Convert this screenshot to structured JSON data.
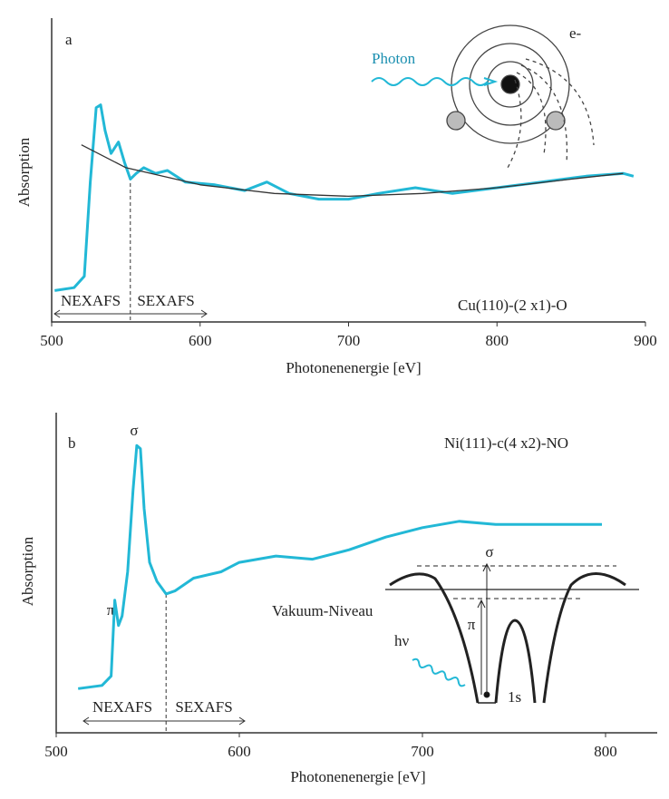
{
  "chart_data": [
    {
      "type": "line",
      "panel_label": "a",
      "xlabel": "Photonenenergie [eV]",
      "ylabel": "Absorption",
      "annotation": "Cu(110)-(2 x1)-O",
      "region_labels": [
        "NEXAFS",
        "SEXAFS"
      ],
      "inset_labels": [
        "Photon",
        "e-"
      ],
      "xlim": [
        500,
        900
      ],
      "xticks": [
        500,
        600,
        700,
        800,
        900
      ],
      "ylim": [
        0,
        100
      ],
      "divider_x": 553,
      "series": [
        {
          "color": "#22b8d6",
          "x": [
            502,
            515,
            522,
            526,
            530,
            533,
            536,
            540,
            545,
            549,
            553,
            557,
            562,
            570,
            578,
            590,
            610,
            630,
            645,
            660,
            680,
            700,
            720,
            745,
            770,
            800,
            830,
            860,
            885,
            892
          ],
          "values": [
            11,
            12,
            16,
            49,
            75,
            76,
            67,
            59,
            63,
            56,
            50,
            52,
            54,
            52,
            53,
            49,
            48,
            46,
            49,
            45,
            43,
            43,
            45,
            47,
            45,
            47,
            49,
            51,
            52,
            51
          ]
        },
        {
          "color": "#333333",
          "x": [
            520,
            550,
            600,
            650,
            700,
            750,
            800,
            850,
            885
          ],
          "values": [
            62,
            54,
            48,
            45,
            44,
            45,
            47,
            50,
            52
          ]
        }
      ]
    },
    {
      "type": "line",
      "panel_label": "b",
      "xlabel": "Photonenenergie [eV]",
      "ylabel": "Absorption",
      "annotation": "Ni(111)-c(4 x2)-NO",
      "region_labels": [
        "NEXAFS",
        "SEXAFS"
      ],
      "peak_labels": [
        "σ",
        "π"
      ],
      "inset_labels": [
        "Vakuum-Niveau",
        "hν",
        "1s",
        "σ",
        "π"
      ],
      "xlim": [
        500,
        828
      ],
      "xticks": [
        500,
        600,
        700,
        800
      ],
      "ylim": [
        0,
        100
      ],
      "divider_x": 560,
      "series": [
        {
          "color": "#22b8d6",
          "x": [
            512,
            525,
            530,
            532,
            534,
            536,
            539,
            542,
            544,
            546,
            548,
            551,
            555,
            560,
            565,
            575,
            590,
            600,
            620,
            640,
            660,
            680,
            700,
            720,
            740,
            760,
            780,
            798
          ],
          "values": [
            14,
            15,
            18,
            42,
            34,
            37,
            51,
            77,
            91,
            90,
            71,
            54,
            48,
            44,
            45,
            49,
            51,
            54,
            56,
            55,
            58,
            62,
            65,
            67,
            66,
            66,
            66,
            66
          ]
        }
      ]
    }
  ]
}
